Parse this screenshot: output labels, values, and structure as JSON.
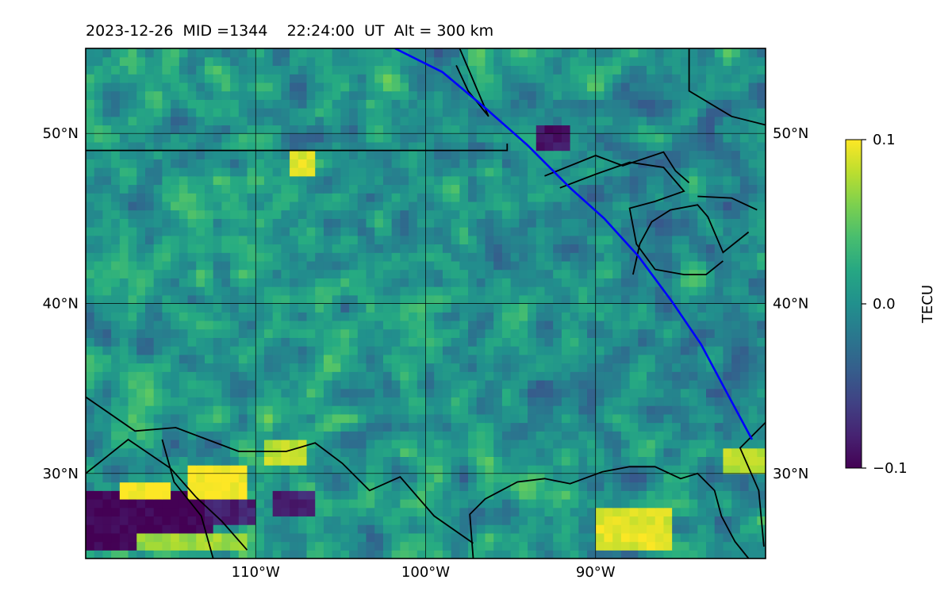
{
  "title": "2023-12-26  MID =1344    22:24:00  UT  Alt = 300 km",
  "chart_data": {
    "type": "heatmap",
    "title": "2023-12-26  MID =1344    22:24:00  UT  Alt = 300 km",
    "map_extent": {
      "lon": [
        -120,
        -80
      ],
      "lat": [
        25,
        55
      ]
    },
    "x_ticks": [
      {
        "value": -110,
        "label": "110°W"
      },
      {
        "value": -100,
        "label": "100°W"
      },
      {
        "value": -90,
        "label": "90°W"
      }
    ],
    "y_ticks": [
      {
        "value": 30,
        "label": "30°N"
      },
      {
        "value": 40,
        "label": "40°N"
      },
      {
        "value": 50,
        "label": "50°N"
      }
    ],
    "grid": true,
    "colormap": "viridis",
    "colorbar": {
      "label": "TECU",
      "range": [
        -0.1,
        0.1
      ],
      "ticks": [
        {
          "value": 0.1,
          "label": "0.1"
        },
        {
          "value": 0.0,
          "label": "0.0"
        },
        {
          "value": -0.1,
          "label": "−0.1"
        }
      ]
    },
    "track": {
      "color": "#0000ff",
      "points": [
        [
          -101.8,
          55
        ],
        [
          -99,
          53.6
        ],
        [
          -96.5,
          51.5
        ],
        [
          -94,
          49.3
        ],
        [
          -91.5,
          46.8
        ],
        [
          -89.5,
          45
        ],
        [
          -87.5,
          42.8
        ],
        [
          -85.5,
          40.1
        ],
        [
          -83.8,
          37.6
        ],
        [
          -82.2,
          34.6
        ],
        [
          -80.8,
          32
        ]
      ]
    },
    "features": {
      "low_regions": [
        {
          "lon": [
            -120,
            -113
          ],
          "lat": [
            25.5,
            28.5
          ],
          "value": -0.1
        },
        {
          "lon": [
            -113,
            -110.5
          ],
          "lat": [
            26.6,
            28
          ],
          "value": -0.08
        },
        {
          "lon": [
            -93.5,
            -92
          ],
          "lat": [
            49,
            50
          ],
          "value": -0.09
        },
        {
          "lon": [
            -109,
            -107
          ],
          "lat": [
            27.5,
            28.5
          ],
          "value": -0.08
        }
      ],
      "high_regions": [
        {
          "lon": [
            -118,
            -115.5
          ],
          "lat": [
            28.4,
            29.4
          ],
          "value": 0.1
        },
        {
          "lon": [
            -114,
            -111
          ],
          "lat": [
            28.5,
            30
          ],
          "value": 0.1
        },
        {
          "lon": [
            -90,
            -86
          ],
          "lat": [
            25.5,
            27.5
          ],
          "value": 0.09
        },
        {
          "lon": [
            -117,
            -111
          ],
          "lat": [
            25.2,
            26
          ],
          "value": 0.07
        },
        {
          "lon": [
            -82.5,
            -80.5
          ],
          "lat": [
            30,
            31
          ],
          "value": 0.08
        },
        {
          "lon": [
            -109.5,
            -107.5
          ],
          "lat": [
            30.5,
            31.5
          ],
          "value": 0.08
        },
        {
          "lon": [
            -108,
            -107
          ],
          "lat": [
            47.5,
            48.5
          ],
          "value": 0.09
        }
      ]
    }
  }
}
